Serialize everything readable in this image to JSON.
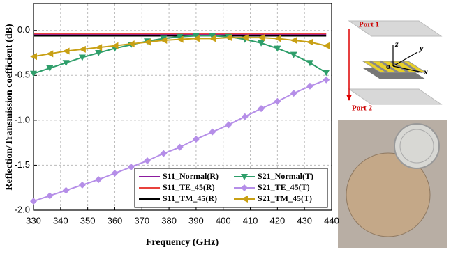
{
  "chart_data": {
    "type": "line",
    "xlabel": "Frequency (GHz)",
    "ylabel": "Reflection/Transmission coefficient (dB)",
    "xlim": [
      330,
      440
    ],
    "ylim": [
      -2.0,
      0.3
    ],
    "xticks": [
      330,
      340,
      350,
      360,
      370,
      380,
      390,
      400,
      410,
      420,
      430,
      440
    ],
    "yticks": [
      {
        "value": 0,
        "label": "0.0"
      },
      -0.5,
      {
        "value": -1,
        "label": "-1.0"
      },
      -1.5,
      {
        "value": -2,
        "label": "-2.0"
      }
    ],
    "grid": true,
    "legend": "lower right",
    "x": [
      330,
      336,
      342,
      348,
      354,
      360,
      366,
      372,
      378,
      384,
      390,
      396,
      402,
      408,
      414,
      420,
      426,
      432,
      438
    ],
    "series": [
      {
        "name": "S11_Normal(R)",
        "color": "#8b1a9e",
        "marker": "none",
        "values": [
          -0.045,
          -0.045,
          -0.045,
          -0.045,
          -0.045,
          -0.045,
          -0.045,
          -0.045,
          -0.045,
          -0.045,
          -0.045,
          -0.045,
          -0.045,
          -0.045,
          -0.045,
          -0.045,
          -0.045,
          -0.045,
          -0.045
        ]
      },
      {
        "name": "S11_TE_45(R)",
        "color": "#e8413c",
        "marker": "none",
        "values": [
          -0.035,
          -0.035,
          -0.035,
          -0.035,
          -0.035,
          -0.035,
          -0.035,
          -0.035,
          -0.035,
          -0.035,
          -0.035,
          -0.035,
          -0.035,
          -0.035,
          -0.035,
          -0.035,
          -0.035,
          -0.035,
          -0.035
        ]
      },
      {
        "name": "S11_TM_45(R)",
        "color": "#000000",
        "marker": "none",
        "values": [
          -0.06,
          -0.06,
          -0.06,
          -0.06,
          -0.06,
          -0.06,
          -0.06,
          -0.06,
          -0.06,
          -0.06,
          -0.06,
          -0.06,
          -0.06,
          -0.06,
          -0.06,
          -0.06,
          -0.06,
          -0.06,
          -0.06
        ]
      },
      {
        "name": "S21_Normal(T)",
        "color": "#2e9e6a",
        "marker": "triangle-down",
        "values": [
          -0.48,
          -0.42,
          -0.36,
          -0.3,
          -0.25,
          -0.2,
          -0.16,
          -0.12,
          -0.09,
          -0.07,
          -0.06,
          -0.06,
          -0.07,
          -0.1,
          -0.14,
          -0.2,
          -0.27,
          -0.36,
          -0.47
        ]
      },
      {
        "name": "S21_TE_45(T)",
        "color": "#b58ee8",
        "marker": "diamond",
        "values": [
          -1.9,
          -1.84,
          -1.78,
          -1.72,
          -1.66,
          -1.59,
          -1.52,
          -1.45,
          -1.37,
          -1.3,
          -1.21,
          -1.13,
          -1.05,
          -0.96,
          -0.87,
          -0.79,
          -0.7,
          -0.62,
          -0.55
        ]
      },
      {
        "name": "S21_TM_45(T)",
        "color": "#c8a014",
        "marker": "triangle-left",
        "values": [
          -0.29,
          -0.26,
          -0.23,
          -0.21,
          -0.19,
          -0.17,
          -0.15,
          -0.13,
          -0.11,
          -0.1,
          -0.09,
          -0.09,
          -0.08,
          -0.08,
          -0.08,
          -0.09,
          -0.11,
          -0.13,
          -0.17
        ]
      }
    ]
  },
  "inset": {
    "port1": "Port 1",
    "port2": "Port 2",
    "z": "z",
    "y": "y",
    "x": "x",
    "o": "o"
  }
}
